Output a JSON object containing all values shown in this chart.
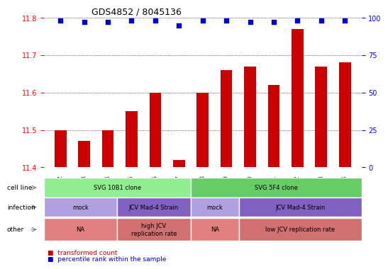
{
  "title": "GDS4852 / 8045136",
  "samples": [
    "GSM1111182",
    "GSM1111183",
    "GSM1111184",
    "GSM1111185",
    "GSM1111186",
    "GSM1111187",
    "GSM1111188",
    "GSM1111189",
    "GSM1111190",
    "GSM1111191",
    "GSM1111192",
    "GSM1111193",
    "GSM1111194"
  ],
  "bar_values": [
    11.5,
    11.47,
    11.5,
    11.55,
    11.6,
    11.42,
    11.6,
    11.66,
    11.67,
    11.62,
    11.77,
    11.67,
    11.68
  ],
  "percentile_values": [
    98,
    97,
    97,
    98,
    98,
    95,
    98,
    98,
    97,
    97,
    98,
    98,
    98
  ],
  "bar_color": "#cc0000",
  "dot_color": "#0000cc",
  "ylim_left": [
    11.4,
    11.8
  ],
  "ylim_right": [
    0,
    100
  ],
  "yticks_left": [
    11.4,
    11.5,
    11.6,
    11.7,
    11.8
  ],
  "yticks_right": [
    0,
    25,
    50,
    75,
    100
  ],
  "cell_line_groups": [
    {
      "label": "SVG 10B1 clone",
      "start": 0,
      "end": 6,
      "color": "#90ee90"
    },
    {
      "label": "SVG 5F4 clone",
      "start": 6,
      "end": 13,
      "color": "#66cc66"
    }
  ],
  "infection_groups": [
    {
      "label": "mock",
      "start": 0,
      "end": 3,
      "color": "#b0a0e0"
    },
    {
      "label": "JCV Mad-4 Strain",
      "start": 3,
      "end": 6,
      "color": "#8060c0"
    },
    {
      "label": "mock",
      "start": 6,
      "end": 8,
      "color": "#b0a0e0"
    },
    {
      "label": "JCV Mad-4 Strain",
      "start": 8,
      "end": 13,
      "color": "#8060c0"
    }
  ],
  "other_groups": [
    {
      "label": "NA",
      "start": 0,
      "end": 3,
      "color": "#e08080"
    },
    {
      "label": "high JCV\nreplication rate",
      "start": 3,
      "end": 6,
      "color": "#d07070"
    },
    {
      "label": "NA",
      "start": 6,
      "end": 8,
      "color": "#e08080"
    },
    {
      "label": "low JCV replication rate",
      "start": 8,
      "end": 13,
      "color": "#d07070"
    }
  ],
  "row_labels": [
    "cell line",
    "infection",
    "other"
  ],
  "legend_items": [
    {
      "label": "transformed count",
      "color": "#cc0000"
    },
    {
      "label": "percentile rank within the sample",
      "color": "#0000cc"
    }
  ]
}
